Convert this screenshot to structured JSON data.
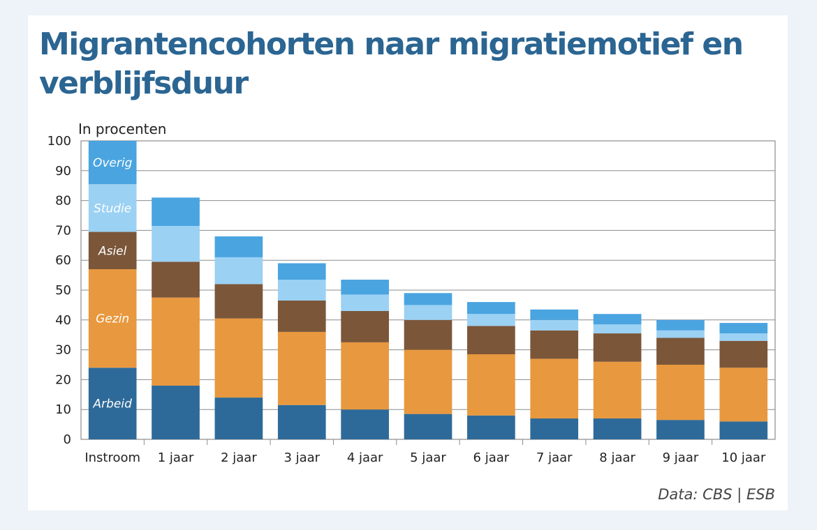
{
  "title": "Migrantencohorten naar migratiemotief en verblijfsduur",
  "chart_data": {
    "type": "bar",
    "stacked": true,
    "title": "Migrantencohorten naar migratiemotief en verblijfsduur",
    "unit_label": "In procenten",
    "xlabel": "",
    "ylabel": "",
    "ylim": [
      0,
      100
    ],
    "yticks": [
      0,
      10,
      20,
      30,
      40,
      50,
      60,
      70,
      80,
      90,
      100
    ],
    "grid": true,
    "categories": [
      "Instroom",
      "1 jaar",
      "2 jaar",
      "3 jaar",
      "4 jaar",
      "5 jaar",
      "6 jaar",
      "7 jaar",
      "8 jaar",
      "9 jaar",
      "10 jaar"
    ],
    "series": [
      {
        "name": "Arbeid",
        "color": "#2e6a99",
        "values": [
          24,
          18,
          14,
          11.5,
          10,
          8.5,
          8,
          7,
          7,
          6.5,
          6
        ]
      },
      {
        "name": "Gezin",
        "color": "#e8983e",
        "values": [
          33,
          29.5,
          26.5,
          24.5,
          22.5,
          21.5,
          20.5,
          20,
          19,
          18.5,
          18
        ]
      },
      {
        "name": "Asiel",
        "color": "#7b5639",
        "values": [
          12.5,
          12,
          11.5,
          10.5,
          10.5,
          10,
          9.5,
          9.5,
          9.5,
          9,
          9
        ]
      },
      {
        "name": "Studie",
        "color": "#9bd1f3",
        "values": [
          16,
          12,
          9,
          7,
          5.5,
          5,
          4,
          3.5,
          3,
          2.5,
          2.5
        ]
      },
      {
        "name": "Overig",
        "color": "#4aa4e0",
        "values": [
          14.5,
          9.5,
          7,
          5.5,
          5,
          4,
          4,
          3.5,
          3.5,
          3.5,
          3.5
        ]
      }
    ],
    "legend": "inline labels on first bar",
    "source": "Data: CBS | ESB"
  }
}
